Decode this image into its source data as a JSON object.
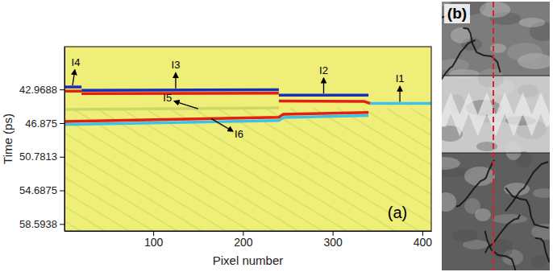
{
  "chart_data": [
    {
      "type": "line",
      "panel_label": "(a)",
      "xlabel": "Pixel number",
      "ylabel": "Time (ps)",
      "xlim": [
        1,
        410
      ],
      "xticks": [
        100,
        200,
        300,
        400
      ],
      "ylim": [
        59.4,
        38.0
      ],
      "yticks": [
        42.9688,
        46.875,
        50.7813,
        54.6875,
        58.5938
      ],
      "series": [
        {
          "color": "#1a2db5",
          "x": [
            1,
            20
          ],
          "values": [
            42.68,
            42.68
          ]
        },
        {
          "color": "#e02010",
          "x": [
            1,
            20
          ],
          "values": [
            43.16,
            43.16
          ]
        },
        {
          "color": "#1a2db5",
          "x": [
            20,
            240
          ],
          "values": [
            43.06,
            43.0
          ]
        },
        {
          "color": "#e02010",
          "x": [
            20,
            240
          ],
          "values": [
            43.45,
            43.4
          ]
        },
        {
          "color": "#1a2db5",
          "x": [
            240,
            340
          ],
          "values": [
            43.64,
            43.64
          ]
        },
        {
          "color": "#e02010",
          "x": [
            240,
            335,
            342
          ],
          "values": [
            44.3,
            44.35,
            44.6
          ]
        },
        {
          "color": "#40c0e8",
          "x": [
            342,
            410
          ],
          "values": [
            44.59,
            44.59
          ]
        },
        {
          "color": "#e02010",
          "x": [
            1,
            240,
            245,
            340
          ],
          "values": [
            46.68,
            46.2,
            45.85,
            45.64
          ]
        },
        {
          "color": "#40c0e8",
          "x": [
            1,
            240,
            245,
            340
          ],
          "values": [
            47.05,
            46.58,
            46.22,
            46.0
          ]
        },
        {
          "color": "#cdd768",
          "x": [
            1,
            240
          ],
          "values": [
            45.3,
            45.1
          ]
        }
      ],
      "annotations": [
        {
          "text": "I4",
          "x": 10,
          "y": 42.68
        },
        {
          "text": "I3",
          "x": 125,
          "y": 43.03
        },
        {
          "text": "I2",
          "x": 290,
          "y": 43.64
        },
        {
          "text": "I1",
          "x": 375,
          "y": 44.59
        },
        {
          "text": "I5",
          "x": 150,
          "y": 45.2
        },
        {
          "text": "I6",
          "x": 165,
          "y": 46.37
        }
      ]
    },
    {
      "type": "image",
      "panel_label": "(b)"
    }
  ]
}
